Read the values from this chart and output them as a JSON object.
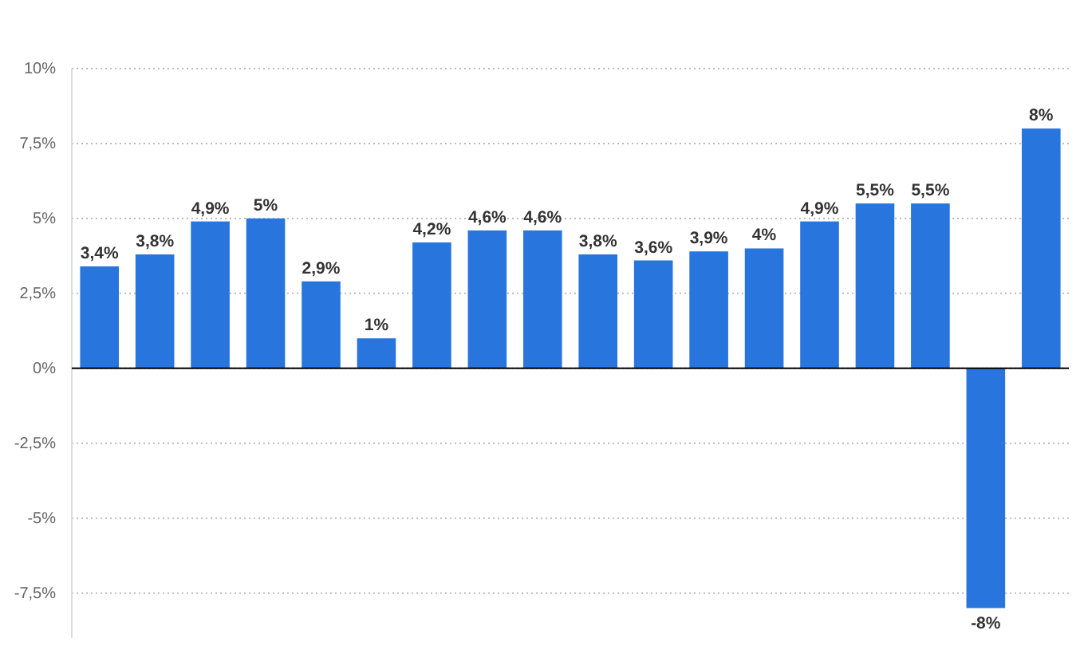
{
  "chart_data": {
    "type": "bar",
    "categories": [
      null,
      null,
      null,
      null,
      null,
      null,
      null,
      null,
      null,
      null,
      null,
      null,
      null,
      null,
      null,
      null,
      null,
      null
    ],
    "values": [
      3.4,
      3.8,
      4.9,
      5,
      2.9,
      1,
      4.2,
      4.6,
      4.6,
      3.8,
      3.6,
      3.9,
      4,
      4.9,
      5.5,
      5.5,
      -8,
      8
    ],
    "value_labels": [
      "3,4%",
      "3,8%",
      "4,9%",
      "5%",
      "2,9%",
      "1%",
      "4,2%",
      "4,6%",
      "4,6%",
      "3,8%",
      "3,6%",
      "3,9%",
      "4%",
      "4,9%",
      "5,5%",
      "5,5%",
      "-8%",
      "8%"
    ],
    "color": "#2876dd",
    "ylim": [
      -9,
      10
    ],
    "yticks": [
      {
        "value": -7.5,
        "label": "-7,5%"
      },
      {
        "value": -5,
        "label": "-5%"
      },
      {
        "value": -2.5,
        "label": "-2,5%"
      },
      {
        "value": 0,
        "label": "0%"
      },
      {
        "value": 2.5,
        "label": "2,5%"
      },
      {
        "value": 5,
        "label": "5%"
      },
      {
        "value": 7.5,
        "label": "7,5%"
      },
      {
        "value": 10,
        "label": "10%"
      }
    ],
    "grid": "y"
  }
}
